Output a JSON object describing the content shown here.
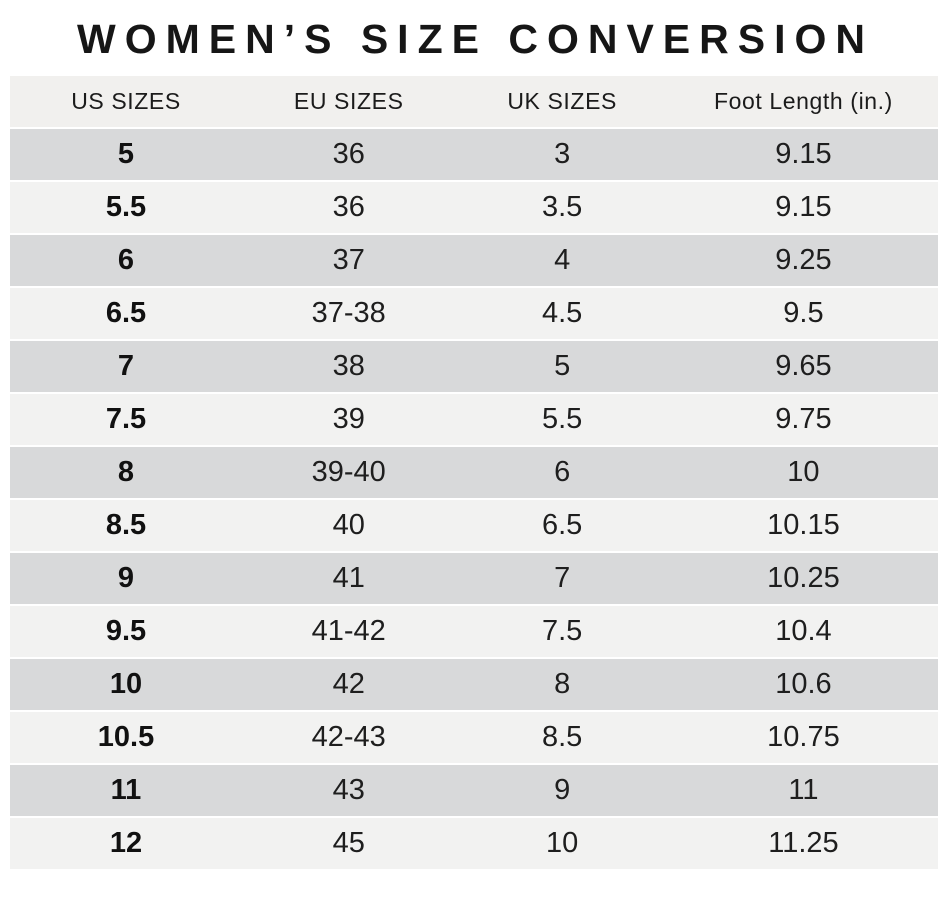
{
  "chart_data": {
    "type": "table",
    "title": "WOMEN’S SIZE CONVERSION",
    "columns": [
      "US SIZES",
      "EU SIZES",
      "UK SIZES",
      "Foot Length (in.)"
    ],
    "rows": [
      [
        "5",
        "36",
        "3",
        "9.15"
      ],
      [
        "5.5",
        "36",
        "3.5",
        "9.15"
      ],
      [
        "6",
        "37",
        "4",
        "9.25"
      ],
      [
        "6.5",
        "37-38",
        "4.5",
        "9.5"
      ],
      [
        "7",
        "38",
        "5",
        "9.65"
      ],
      [
        "7.5",
        "39",
        "5.5",
        "9.75"
      ],
      [
        "8",
        "39-40",
        "6",
        "10"
      ],
      [
        "8.5",
        "40",
        "6.5",
        "10.15"
      ],
      [
        "9",
        "41",
        "7",
        "10.25"
      ],
      [
        "9.5",
        "41-42",
        "7.5",
        "10.4"
      ],
      [
        "10",
        "42",
        "8",
        "10.6"
      ],
      [
        "10.5",
        "42-43",
        "8.5",
        "10.75"
      ],
      [
        "11",
        "43",
        "9",
        "11"
      ],
      [
        "12",
        "45",
        "10",
        "11.25"
      ]
    ]
  },
  "colors": {
    "header_bg": "#f1f0ee",
    "row_dark": "#d8d9da",
    "row_light": "#f2f2f1",
    "title_text": "#161616",
    "body_text": "#1e1e1e",
    "background": "#ffffff"
  }
}
